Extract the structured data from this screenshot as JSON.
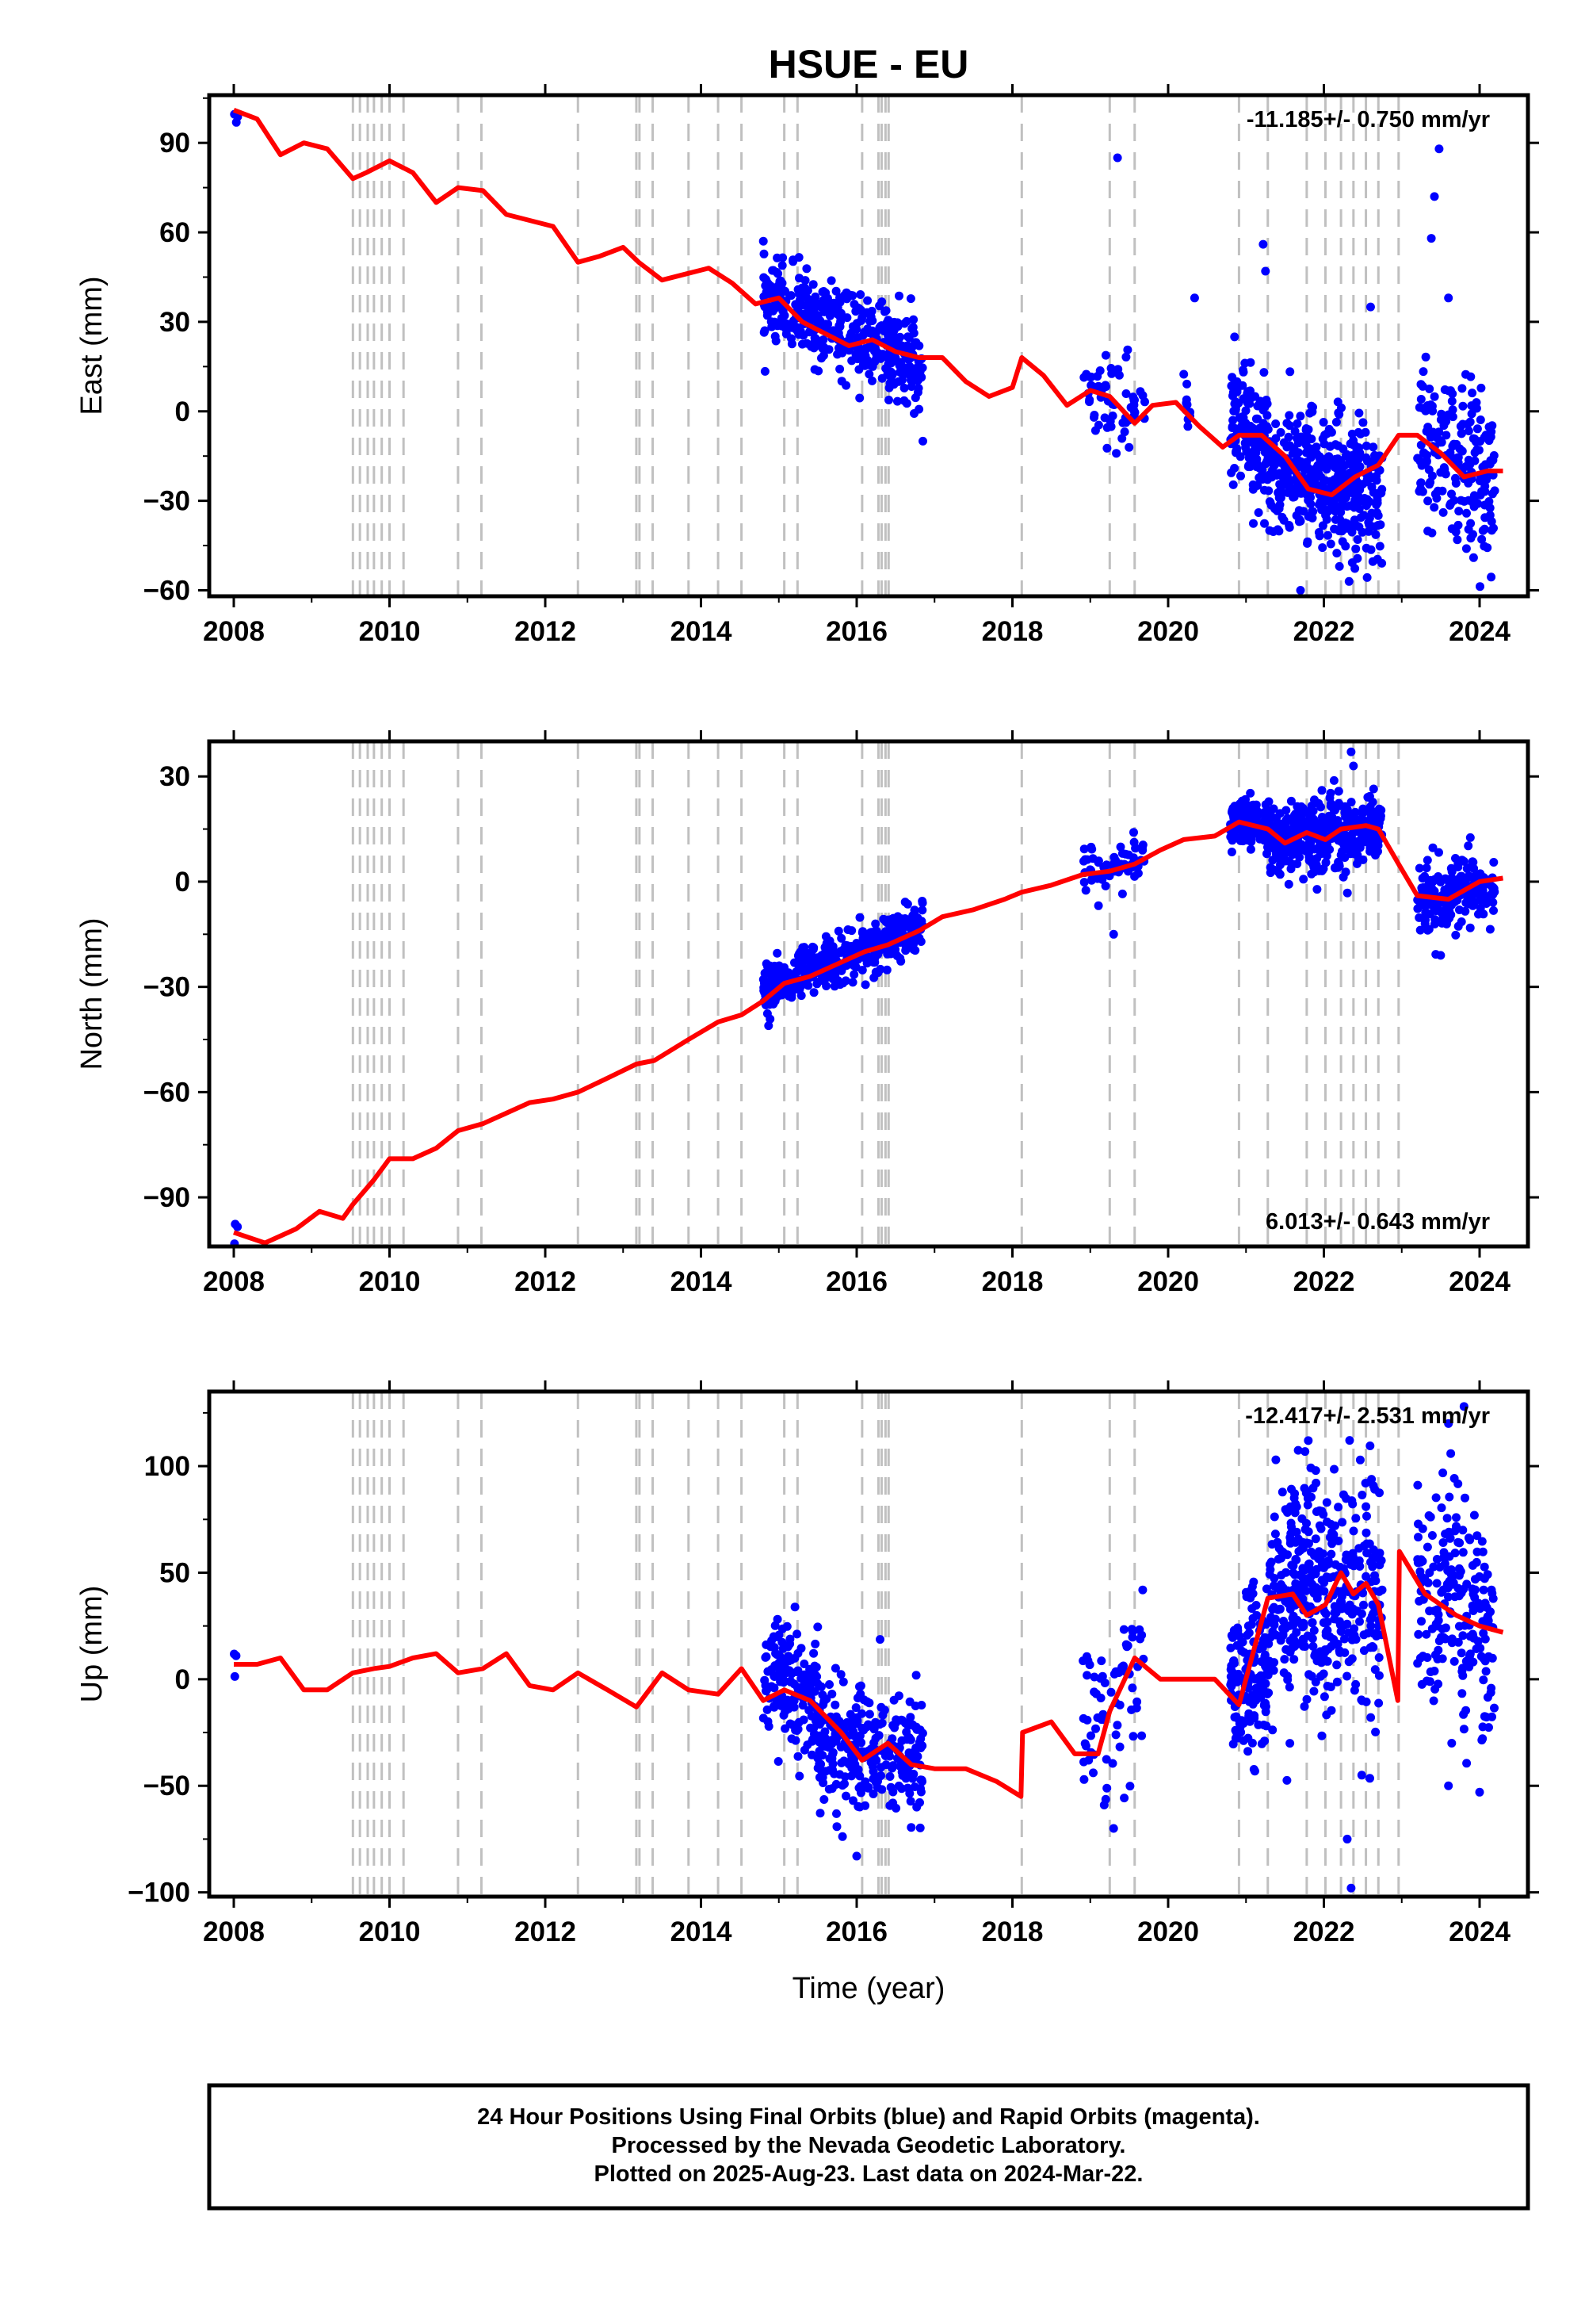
{
  "title": "HSUE - EU",
  "xlabel": "Time (year)",
  "footer": {
    "line1": "24 Hour Positions Using Final Orbits (blue) and Rapid Orbits (magenta).",
    "line2": "Processed by the Nevada Geodetic Laboratory.",
    "line3": "Plotted on 2025-Aug-23. Last data on 2024-Mar-22."
  },
  "colors": {
    "final_orbits": "#0000ff",
    "model": "#ff0000",
    "event_lines": "#c0c0c0",
    "frame": "#000000"
  },
  "events": [
    2009.53,
    2009.62,
    2009.72,
    2009.8,
    2009.9,
    2010.0,
    2010.18,
    2010.88,
    2011.18,
    2012.42,
    2013.17,
    2013.21,
    2013.38,
    2013.84,
    2014.22,
    2014.52,
    2015.07,
    2015.24,
    2016.07,
    2016.28,
    2016.32,
    2016.37,
    2016.41,
    2018.12,
    2019.25,
    2019.57,
    2020.91,
    2021.28,
    2021.78,
    2022.02,
    2022.22,
    2022.38,
    2022.54,
    2022.7,
    2022.96
  ],
  "xticks": [
    "2008",
    "2010",
    "2012",
    "2014",
    "2016",
    "2018",
    "2020",
    "2022",
    "2024"
  ],
  "chart_data": [
    {
      "type": "scatter",
      "name": "east",
      "ylabel": "East (mm)",
      "rate": "-11.185+/- 0.750 mm/yr",
      "xlim": [
        2007.7,
        2024.6
      ],
      "ylim": [
        -62,
        106
      ],
      "yticks": [
        "90",
        "60",
        "30",
        "0",
        "−30",
        "−60"
      ],
      "yticks_values": [
        90,
        60,
        30,
        0,
        -30,
        -60
      ],
      "model": {
        "x": [
          2008.0,
          2008.3,
          2008.6,
          2008.9,
          2009.2,
          2009.53,
          2009.7,
          2010.0,
          2010.3,
          2010.6,
          2010.88,
          2011.2,
          2011.5,
          2011.8,
          2012.1,
          2012.42,
          2012.7,
          2013.0,
          2013.2,
          2013.5,
          2013.8,
          2014.1,
          2014.4,
          2014.7,
          2015.0,
          2015.3,
          2015.6,
          2015.9,
          2016.2,
          2016.5,
          2016.8,
          2017.1,
          2017.4,
          2017.7,
          2018.0,
          2018.12,
          2018.4,
          2018.7,
          2019.0,
          2019.25,
          2019.57,
          2019.8,
          2020.1,
          2020.4,
          2020.7,
          2020.91,
          2021.2,
          2021.5,
          2021.8,
          2022.1,
          2022.4,
          2022.7,
          2022.96,
          2023.2,
          2023.5,
          2023.8,
          2024.1,
          2024.3
        ],
        "y": [
          101,
          98,
          86,
          90,
          88,
          78,
          80,
          84,
          80,
          70,
          75,
          74,
          66,
          64,
          62,
          50,
          52,
          55,
          50,
          44,
          46,
          48,
          43,
          36,
          38,
          30,
          26,
          22,
          24,
          20,
          18,
          18,
          10,
          5,
          8,
          18,
          12,
          2,
          7,
          5,
          -4,
          2,
          3,
          -5,
          -12,
          -8,
          -8,
          -15,
          -26,
          -28,
          -22,
          -18,
          -8,
          -8,
          -14,
          -22,
          -20,
          -20
        ]
      },
      "clusters": [
        {
          "x": [
            2008.0,
            2008.05
          ],
          "y": [
            100,
            100
          ],
          "sd": 3,
          "n": 3
        },
        {
          "x": [
            2014.8,
            2016.85
          ],
          "y": [
            38,
            16
          ],
          "sd": 7,
          "n": 420
        },
        {
          "x": [
            2018.9,
            2019.7
          ],
          "y": [
            8,
            -2
          ],
          "sd": 9,
          "n": 60
        },
        {
          "x": [
            2020.2,
            2020.3
          ],
          "y": [
            5,
            0
          ],
          "sd": 6,
          "n": 10
        },
        {
          "x": [
            2020.8,
            2021.3
          ],
          "y": [
            -5,
            -12
          ],
          "sd": 10,
          "n": 160
        },
        {
          "x": [
            2021.3,
            2022.75
          ],
          "y": [
            -20,
            -28
          ],
          "sd": 11,
          "n": 420
        },
        {
          "x": [
            2023.2,
            2024.2
          ],
          "y": [
            -10,
            -25
          ],
          "sd": 14,
          "n": 200
        }
      ],
      "outliers": [
        [
          2019.35,
          85
        ],
        [
          2023.48,
          88
        ],
        [
          2023.42,
          72
        ],
        [
          2023.38,
          58
        ],
        [
          2021.22,
          56
        ],
        [
          2021.25,
          47
        ],
        [
          2020.34,
          38
        ],
        [
          2022.6,
          35
        ],
        [
          2021.7,
          -60
        ],
        [
          2022.2,
          -52
        ],
        [
          2016.85,
          -10
        ],
        [
          2023.6,
          38
        ]
      ]
    },
    {
      "type": "scatter",
      "name": "north",
      "ylabel": "North (mm)",
      "rate": "6.013+/- 0.643 mm/yr",
      "xlim": [
        2007.7,
        2024.6
      ],
      "ylim": [
        -104,
        40
      ],
      "yticks": [
        "30",
        "0",
        "−30",
        "−60",
        "−90"
      ],
      "yticks_values": [
        30,
        0,
        -30,
        -60,
        -90
      ],
      "model": {
        "x": [
          2008.0,
          2008.4,
          2008.8,
          2009.1,
          2009.4,
          2009.53,
          2009.8,
          2010.0,
          2010.3,
          2010.6,
          2010.88,
          2011.2,
          2011.5,
          2011.8,
          2012.1,
          2012.42,
          2012.8,
          2013.17,
          2013.4,
          2013.84,
          2014.22,
          2014.52,
          2014.8,
          2015.07,
          2015.4,
          2015.8,
          2016.1,
          2016.4,
          2016.8,
          2017.1,
          2017.5,
          2017.9,
          2018.12,
          2018.5,
          2018.9,
          2019.25,
          2019.57,
          2019.9,
          2020.2,
          2020.6,
          2020.91,
          2021.28,
          2021.5,
          2021.78,
          2022.02,
          2022.22,
          2022.54,
          2022.7,
          2022.96,
          2023.2,
          2023.6,
          2024.0,
          2024.3
        ],
        "y": [
          -100,
          -103,
          -99,
          -94,
          -96,
          -92,
          -85,
          -79,
          -79,
          -76,
          -71,
          -69,
          -66,
          -63,
          -62,
          -60,
          -56,
          -52,
          -51,
          -45,
          -40,
          -38,
          -34,
          -29,
          -27,
          -23,
          -20,
          -18,
          -14,
          -10,
          -8,
          -5,
          -3,
          -1,
          2,
          3,
          5,
          9,
          12,
          13,
          17,
          15,
          11,
          14,
          12,
          15,
          16,
          15,
          5,
          -4,
          -5,
          0,
          1
        ]
      },
      "clusters": [
        {
          "x": [
            2008.0,
            2008.05
          ],
          "y": [
            -100,
            -100
          ],
          "sd": 2,
          "n": 3
        },
        {
          "x": [
            2014.8,
            2016.85
          ],
          "y": [
            -30,
            -13
          ],
          "sd": 3.5,
          "n": 420
        },
        {
          "x": [
            2018.9,
            2019.7
          ],
          "y": [
            2,
            6
          ],
          "sd": 4,
          "n": 60
        },
        {
          "x": [
            2020.8,
            2021.3
          ],
          "y": [
            17,
            16
          ],
          "sd": 3.5,
          "n": 160
        },
        {
          "x": [
            2021.3,
            2022.75
          ],
          "y": [
            12,
            14
          ],
          "sd": 5,
          "n": 420
        },
        {
          "x": [
            2023.2,
            2024.2
          ],
          "y": [
            -5,
            0
          ],
          "sd": 5,
          "n": 200
        }
      ],
      "outliers": [
        [
          2022.35,
          37
        ],
        [
          2022.38,
          33
        ],
        [
          2019.3,
          -15
        ],
        [
          2023.5,
          -21
        ]
      ]
    },
    {
      "type": "scatter",
      "name": "up",
      "ylabel": "Up (mm)",
      "rate": "-12.417+/- 2.531 mm/yr",
      "xlim": [
        2007.7,
        2024.6
      ],
      "ylim": [
        -102,
        135
      ],
      "yticks": [
        "100",
        "50",
        "0",
        "−50",
        "−100"
      ],
      "yticks_values": [
        100,
        50,
        0,
        -50,
        -100
      ],
      "model": {
        "x": [
          2008.0,
          2008.3,
          2008.6,
          2008.9,
          2009.2,
          2009.53,
          2009.8,
          2010.0,
          2010.3,
          2010.6,
          2010.88,
          2011.2,
          2011.5,
          2011.8,
          2012.1,
          2012.42,
          2012.8,
          2013.17,
          2013.5,
          2013.84,
          2014.22,
          2014.52,
          2014.8,
          2015.07,
          2015.4,
          2015.8,
          2016.07,
          2016.4,
          2016.7,
          2017.0,
          2017.4,
          2017.8,
          2018.11,
          2018.13,
          2018.5,
          2018.8,
          2019.1,
          2019.25,
          2019.57,
          2019.9,
          2020.2,
          2020.6,
          2020.91,
          2021.28,
          2021.6,
          2021.78,
          2022.02,
          2022.22,
          2022.38,
          2022.54,
          2022.7,
          2022.95,
          2022.97,
          2023.3,
          2023.7,
          2024.0,
          2024.3
        ],
        "y": [
          7,
          7,
          10,
          -5,
          -5,
          3,
          5,
          6,
          10,
          12,
          3,
          5,
          12,
          -3,
          -5,
          3,
          -5,
          -13,
          3,
          -5,
          -7,
          5,
          -10,
          -5,
          -10,
          -25,
          -38,
          -30,
          -40,
          -42,
          -42,
          -48,
          -55,
          -25,
          -20,
          -35,
          -35,
          -15,
          10,
          0,
          0,
          0,
          -12,
          38,
          40,
          30,
          35,
          50,
          40,
          45,
          35,
          -10,
          60,
          40,
          30,
          25,
          22
        ]
      },
      "clusters": [
        {
          "x": [
            2008.0,
            2008.05
          ],
          "y": [
            10,
            10
          ],
          "sd": 12,
          "n": 3
        },
        {
          "x": [
            2014.8,
            2015.5
          ],
          "y": [
            0,
            -5
          ],
          "sd": 14,
          "n": 150
        },
        {
          "x": [
            2015.5,
            2016.85
          ],
          "y": [
            -30,
            -38
          ],
          "sd": 15,
          "n": 280
        },
        {
          "x": [
            2018.9,
            2019.7
          ],
          "y": [
            -25,
            5
          ],
          "sd": 22,
          "n": 70
        },
        {
          "x": [
            2020.8,
            2021.3
          ],
          "y": [
            -5,
            5
          ],
          "sd": 18,
          "n": 160
        },
        {
          "x": [
            2021.3,
            2022.75
          ],
          "y": [
            40,
            40
          ],
          "sd": 28,
          "n": 420
        },
        {
          "x": [
            2023.2,
            2024.2
          ],
          "y": [
            45,
            25
          ],
          "sd": 28,
          "n": 200
        }
      ],
      "outliers": [
        [
          2022.3,
          -75
        ],
        [
          2022.35,
          -98
        ],
        [
          2019.3,
          -70
        ],
        [
          2016.0,
          -83
        ],
        [
          2023.8,
          128
        ],
        [
          2023.6,
          120
        ],
        [
          2021.8,
          112
        ],
        [
          2024.0,
          -53
        ],
        [
          2023.6,
          -50
        ]
      ]
    }
  ]
}
